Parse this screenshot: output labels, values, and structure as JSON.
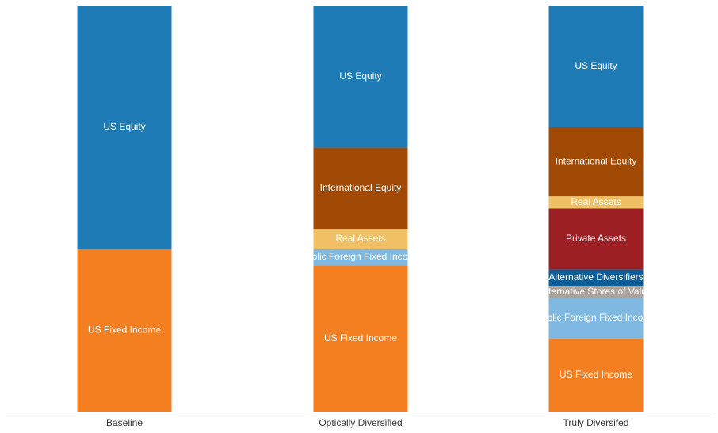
{
  "chart_data": {
    "type": "stacked_bar_100",
    "categories": [
      "Baseline",
      "Optically Diversified",
      "Truly Diversifed"
    ],
    "ylim": [
      0,
      100
    ],
    "series": [
      {
        "name": "US Fixed Income",
        "color": "#f47f20",
        "values": [
          40,
          36,
          18
        ]
      },
      {
        "name": "Public Foreign Fixed Income",
        "color": "#7fb8e0",
        "values": [
          null,
          4,
          10
        ]
      },
      {
        "name": "Alternative Stores of Value",
        "color": "#aba39b",
        "values": [
          null,
          null,
          3
        ]
      },
      {
        "name": "Alternative Diversifiers",
        "color": "#0b5e98",
        "values": [
          null,
          null,
          4
        ]
      },
      {
        "name": "Private Assets",
        "color": "#9c1f24",
        "values": [
          null,
          null,
          15
        ]
      },
      {
        "name": "Real Assets",
        "color": "#f0c064",
        "values": [
          null,
          5,
          3
        ]
      },
      {
        "name": "International Equity",
        "color": "#a04a06",
        "values": [
          null,
          20,
          17
        ]
      },
      {
        "name": "US Equity",
        "color": "#1f7bb6",
        "values": [
          60,
          35,
          30
        ]
      }
    ]
  }
}
